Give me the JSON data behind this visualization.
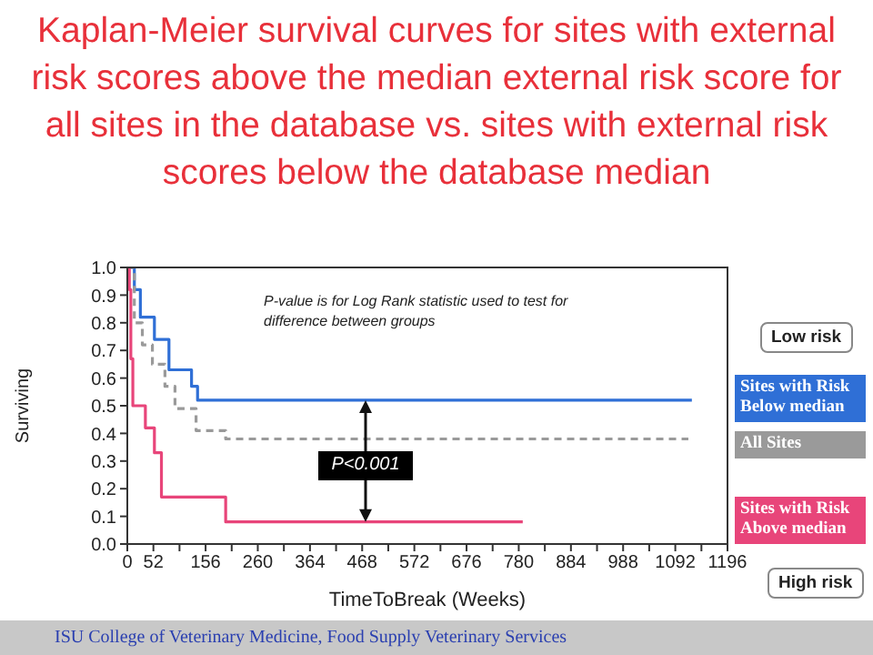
{
  "chart_data": {
    "type": "step",
    "title": "Kaplan-Meier survival curves for sites with external risk scores above the median external risk score for all sites in the database vs. sites with external risk scores below the database median",
    "xlabel": "TimeToBreak (Weeks)",
    "ylabel": "Surviving",
    "xlim": [
      0,
      1196
    ],
    "xticks": [
      0,
      52,
      {
        "value": 104,
        "label": null
      },
      156,
      {
        "value": 208,
        "label": null
      },
      260,
      {
        "value": 312,
        "label": null
      },
      364,
      {
        "value": 416,
        "label": null
      },
      468,
      {
        "value": 520,
        "label": null
      },
      572,
      {
        "value": 624,
        "label": null
      },
      676,
      {
        "value": 728,
        "label": null
      },
      780,
      {
        "value": 832,
        "label": null
      },
      884,
      {
        "value": 936,
        "label": null
      },
      988,
      {
        "value": 1040,
        "label": null
      },
      1092,
      {
        "value": 1144,
        "label": null
      },
      1196
    ],
    "ylim": [
      0,
      1
    ],
    "yticks": [
      {
        "value": 0,
        "label": "0.0"
      },
      0.1,
      0.2,
      0.3,
      0.4,
      0.5,
      0.6,
      0.7,
      0.8,
      0.9,
      {
        "value": 1,
        "label": "1.0"
      }
    ],
    "legend": "right",
    "marker": "none",
    "series": [
      {
        "name": "Sites with Risk Below median",
        "color": "#2f6fd6",
        "line_style": "solid",
        "x": [
          0,
          14,
          26,
          54,
          83,
          128,
          140,
          1125
        ],
        "values": [
          1,
          0.92,
          0.82,
          0.74,
          0.63,
          0.57,
          0.52,
          0.52
        ]
      },
      {
        "name": "All Sites",
        "color": "#9a9a9a",
        "line_style": "dashed",
        "x": [
          0,
          14,
          30,
          50,
          75,
          95,
          137,
          196,
          1118
        ],
        "values": [
          1,
          0.8,
          0.72,
          0.65,
          0.57,
          0.49,
          0.41,
          0.38,
          0.38
        ]
      },
      {
        "name": "Sites with Risk Above median",
        "color": "#e8457a",
        "line_style": "solid",
        "x": [
          0,
          4,
          7,
          11,
          36,
          54,
          68,
          196,
          788
        ],
        "values": [
          1,
          0.92,
          0.67,
          0.5,
          0.42,
          0.33,
          0.17,
          0.08,
          0.08
        ]
      }
    ],
    "annotations": [
      "P-value is for Log Rank statistic used to test for difference between groups",
      "P<0.001",
      "Low risk",
      "High risk",
      "ISU College of Veterinary Medicine, Food Supply Veterinary Services"
    ]
  }
}
